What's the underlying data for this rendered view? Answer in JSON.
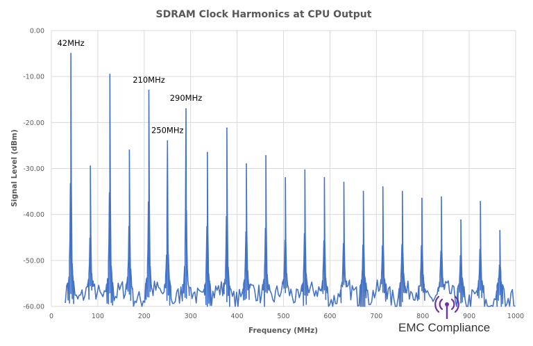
{
  "chart_data": {
    "type": "line",
    "title": "SDRAM Clock Harmonics at CPU Output",
    "xlabel": "Frequency (MHz)",
    "ylabel": "Signal Level (dBm)",
    "xlim": [
      0,
      1000
    ],
    "ylim": [
      -60,
      0
    ],
    "x_ticks": [
      "0",
      "100",
      "200",
      "300",
      "400",
      "500",
      "600",
      "700",
      "800",
      "900",
      "1000"
    ],
    "y_ticks": [
      "0.00",
      "-10.00",
      "-20.00",
      "-30.00",
      "-40.00",
      "-50.00",
      "-60.00"
    ],
    "grid": true,
    "line_color": "#4472c4",
    "noise_floor": -56,
    "peaks": [
      {
        "x": 42,
        "y": -5
      },
      {
        "x": 84,
        "y": -29.5
      },
      {
        "x": 126,
        "y": -9.5
      },
      {
        "x": 168,
        "y": -26
      },
      {
        "x": 210,
        "y": -13
      },
      {
        "x": 250,
        "y": -24
      },
      {
        "x": 290,
        "y": -17
      },
      {
        "x": 336,
        "y": -26.5
      },
      {
        "x": 378,
        "y": -21.2
      },
      {
        "x": 420,
        "y": -29
      },
      {
        "x": 462,
        "y": -27.2
      },
      {
        "x": 504,
        "y": -32
      },
      {
        "x": 546,
        "y": -30.3
      },
      {
        "x": 588,
        "y": -32
      },
      {
        "x": 630,
        "y": -33
      },
      {
        "x": 672,
        "y": -35
      },
      {
        "x": 714,
        "y": -34
      },
      {
        "x": 756,
        "y": -35
      },
      {
        "x": 798,
        "y": -36.5
      },
      {
        "x": 840,
        "y": -36.2
      },
      {
        "x": 882,
        "y": -41.2
      },
      {
        "x": 924,
        "y": -37.2
      },
      {
        "x": 966,
        "y": -43.5
      }
    ],
    "annotations": [
      {
        "text": "42MHz",
        "x": 42,
        "y": -3.3
      },
      {
        "text": "210MHz",
        "x": 210,
        "y": -11.3
      },
      {
        "text": "250MHz",
        "x": 250,
        "y": -22.3
      },
      {
        "text": "290MHz",
        "x": 290,
        "y": -15.3
      }
    ]
  },
  "watermark": {
    "text": "EMC Compliance",
    "icon": "antenna-icon",
    "icon_color": "#7030a0"
  }
}
